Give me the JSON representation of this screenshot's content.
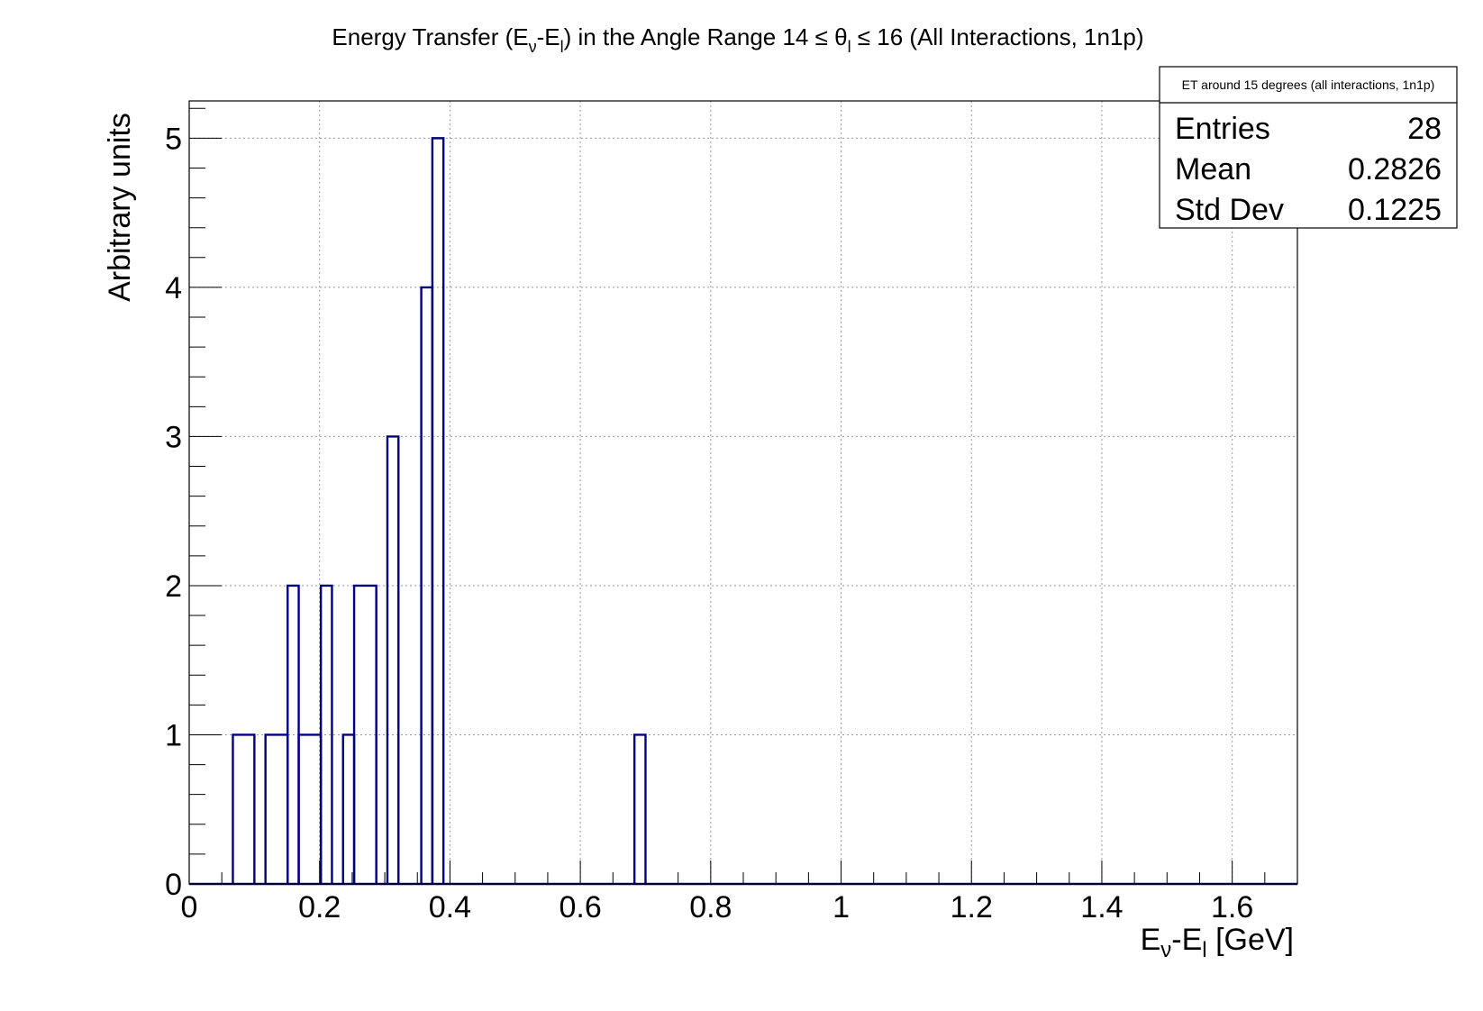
{
  "chart_data": {
    "type": "histogram",
    "title": {
      "prefix": "Energy Transfer (E",
      "sub_nu": "ν",
      "dash": "-E",
      "sub_l": "l",
      "middle": ") in the Angle Range 14  ≤ θ",
      "sub_theta": "l",
      "suffix": " ≤ 16 (All Interactions, 1n1p)"
    },
    "xlabel": {
      "prefix": "E",
      "sub_nu": "ν",
      "dash": "-E",
      "sub_l": "l",
      "suffix": " [GeV]"
    },
    "ylabel": "Arbitrary units",
    "xlim": [
      0,
      1.7
    ],
    "ylim": [
      0,
      5.25
    ],
    "x_ticks": [
      {
        "value": 0,
        "label": "0"
      },
      {
        "value": 0.2,
        "label": "0.2"
      },
      {
        "value": 0.4,
        "label": "0.4"
      },
      {
        "value": 0.6,
        "label": "0.6"
      },
      {
        "value": 0.8,
        "label": "0.8"
      },
      {
        "value": 1.0,
        "label": "1"
      },
      {
        "value": 1.2,
        "label": "1.2"
      },
      {
        "value": 1.4,
        "label": "1.4"
      },
      {
        "value": 1.6,
        "label": "1.6"
      }
    ],
    "y_ticks": [
      {
        "value": 0,
        "label": "0"
      },
      {
        "value": 1,
        "label": "1"
      },
      {
        "value": 2,
        "label": "2"
      },
      {
        "value": 3,
        "label": "3"
      },
      {
        "value": 4,
        "label": "4"
      },
      {
        "value": 5,
        "label": "5"
      }
    ],
    "grid": true,
    "line_color": "#000080",
    "bins": [
      {
        "x0": 0.067,
        "x1": 0.1,
        "count": 1
      },
      {
        "x0": 0.117,
        "x1": 0.151,
        "count": 1
      },
      {
        "x0": 0.151,
        "x1": 0.168,
        "count": 2
      },
      {
        "x0": 0.168,
        "x1": 0.202,
        "count": 1
      },
      {
        "x0": 0.202,
        "x1": 0.219,
        "count": 2
      },
      {
        "x0": 0.236,
        "x1": 0.253,
        "count": 1
      },
      {
        "x0": 0.253,
        "x1": 0.287,
        "count": 2
      },
      {
        "x0": 0.304,
        "x1": 0.321,
        "count": 3
      },
      {
        "x0": 0.356,
        "x1": 0.373,
        "count": 4
      },
      {
        "x0": 0.373,
        "x1": 0.39,
        "count": 5
      },
      {
        "x0": 0.683,
        "x1": 0.7,
        "count": 1
      }
    ],
    "stats": {
      "name": "ET around 15 degrees (all interactions, 1n1p)",
      "rows": [
        {
          "label": "Entries",
          "value": "28"
        },
        {
          "label": "Mean",
          "value": "0.2826"
        },
        {
          "label": "Std Dev",
          "value": "0.1225"
        }
      ]
    }
  }
}
